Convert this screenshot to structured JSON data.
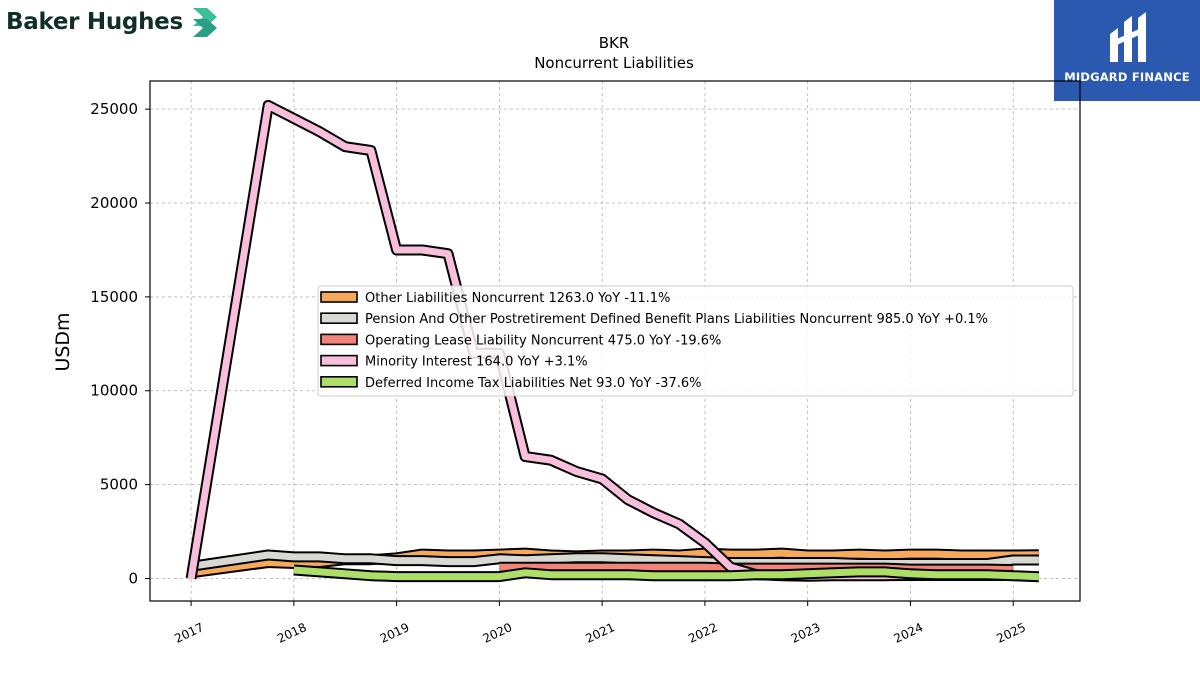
{
  "branding": {
    "left_logo_text": "Baker Hughes",
    "right_logo_text": "MIDGARD FINANCE",
    "right_logo_bg": "#2b59b0"
  },
  "chart_data": {
    "type": "area",
    "title": "BKR",
    "subtitle": "Noncurrent  Liabilities",
    "ylabel": "USDm",
    "xlabel": "",
    "xlim": [
      2016.6,
      2025.65
    ],
    "ylim": [
      -1200,
      26500
    ],
    "yticks": [
      0,
      5000,
      10000,
      15000,
      20000,
      25000
    ],
    "xticks": [
      2017,
      2018,
      2019,
      2020,
      2021,
      2022,
      2023,
      2024,
      2025
    ],
    "grid": true,
    "legend_position": "center",
    "series": [
      {
        "name": "Other Liabilities Noncurrent  1263.0 YoY -11.1%",
        "color": "#f6a95b",
        "x": [
          2017.0,
          2017.75,
          2018.0,
          2018.25,
          2018.5,
          2018.75,
          2019.0,
          2019.25,
          2019.5,
          2019.75,
          2020.0,
          2020.25,
          2020.5,
          2020.75,
          2021.0,
          2021.25,
          2021.5,
          2021.75,
          2022.0,
          2022.25,
          2022.5,
          2022.75,
          2023.0,
          2023.25,
          2023.5,
          2023.75,
          2024.0,
          2024.25,
          2024.5,
          2024.75,
          2025.0,
          2025.25
        ],
        "values": [
          300,
          850,
          800,
          850,
          1000,
          1000,
          1100,
          1300,
          1250,
          1250,
          1300,
          1350,
          1250,
          1200,
          1250,
          1250,
          1300,
          1250,
          1350,
          1300,
          1300,
          1350,
          1250,
          1250,
          1300,
          1250,
          1300,
          1300,
          1250,
          1250,
          1250,
          1263
        ]
      },
      {
        "name": "Pension And Other Postretirement Defined Benefit Plans Liabilities Noncurrent  985.0 YoY +0.1%",
        "color": "#d9d9d4",
        "x": [
          2017.0,
          2017.75,
          2018.0,
          2018.25,
          2018.5,
          2018.75,
          2019.0,
          2019.25,
          2019.5,
          2019.75,
          2020.0,
          2020.25,
          2020.5,
          2020.75,
          2021.0,
          2021.25,
          2021.5,
          2021.75,
          2022.0,
          2022.25,
          2022.5,
          2022.75,
          2023.0,
          2023.25,
          2023.5,
          2023.75,
          2024.0,
          2024.25,
          2024.5,
          2024.75,
          2025.0,
          2025.25
        ],
        "values": [
          650,
          1250,
          1150,
          1150,
          1050,
          1050,
          950,
          950,
          900,
          900,
          1050,
          1000,
          1050,
          1100,
          1100,
          1050,
          1000,
          950,
          900,
          850,
          850,
          850,
          850,
          850,
          800,
          800,
          800,
          800,
          800,
          800,
          985,
          985
        ]
      },
      {
        "name": "Operating Lease Liability Noncurrent  475.0 YoY -19.6%",
        "color": "#f4847a",
        "x": [
          2020.0,
          2020.25,
          2020.5,
          2020.75,
          2021.0,
          2021.25,
          2021.5,
          2021.75,
          2022.0,
          2022.25,
          2022.5,
          2022.75,
          2023.0,
          2023.25,
          2023.5,
          2023.75,
          2024.0,
          2024.25,
          2024.5,
          2024.75,
          2025.0
        ],
        "values": [
          600,
          600,
          600,
          600,
          600,
          600,
          600,
          600,
          600,
          550,
          550,
          550,
          550,
          550,
          550,
          550,
          500,
          500,
          500,
          500,
          475
        ]
      },
      {
        "name": "Minority Interest  164.0 YoY +3.1%",
        "color": "#f7bfdb",
        "x": [
          2017.0,
          2017.75,
          2018.0,
          2018.25,
          2018.5,
          2018.75,
          2019.0,
          2019.25,
          2019.5,
          2019.75,
          2020.0,
          2020.25,
          2020.5,
          2020.75,
          2021.0,
          2021.25,
          2021.5,
          2021.75,
          2022.0,
          2022.25,
          2022.5,
          2022.75,
          2023.0,
          2023.25,
          2023.5,
          2023.75,
          2024.0,
          2024.25,
          2024.5,
          2024.75,
          2025.0
        ],
        "values": [
          0,
          25200,
          24500,
          23800,
          23000,
          22800,
          17500,
          17500,
          17300,
          12000,
          12000,
          6500,
          6300,
          5700,
          5300,
          4200,
          3500,
          2900,
          1900,
          600,
          200,
          150,
          120,
          140,
          150,
          150,
          160,
          160,
          160,
          160,
          164
        ]
      },
      {
        "name": "Deferred Income Tax Liabilities Net  93.0 YoY -37.6%",
        "color": "#addf68",
        "x": [
          2018.0,
          2018.25,
          2018.5,
          2018.75,
          2019.0,
          2019.25,
          2019.5,
          2019.75,
          2020.0,
          2020.25,
          2020.5,
          2020.75,
          2021.0,
          2021.25,
          2021.5,
          2021.75,
          2022.0,
          2022.25,
          2022.5,
          2022.75,
          2023.0,
          2023.25,
          2023.5,
          2023.75,
          2024.0,
          2024.25,
          2024.5,
          2024.75,
          2025.0,
          2025.25
        ],
        "values": [
          450,
          350,
          250,
          150,
          100,
          100,
          100,
          100,
          100,
          300,
          200,
          200,
          200,
          200,
          150,
          150,
          150,
          150,
          200,
          200,
          250,
          300,
          350,
          350,
          250,
          200,
          200,
          200,
          150,
          93
        ]
      }
    ]
  }
}
